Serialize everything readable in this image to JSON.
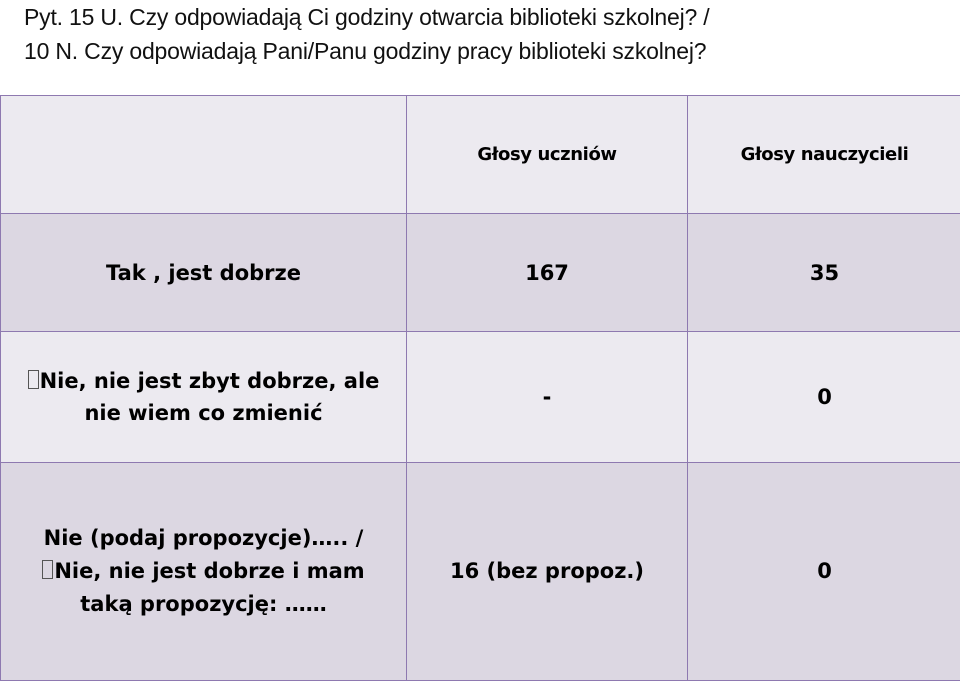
{
  "heading": {
    "line1": "Pyt. 15 U.  Czy odpowiadają Ci godziny otwarcia biblioteki szkolnej? /",
    "line2": "10 N. Czy odpowiadają Pani/Panu godziny pracy biblioteki szkolnej?"
  },
  "table": {
    "headers": [
      "",
      "Głosy uczniów",
      "Głosy nauczycieli"
    ],
    "rows": [
      {
        "label": "Tak , jest dobrze",
        "students": "167",
        "teachers": "35"
      },
      {
        "label_line1": "Nie, nie jest zbyt dobrze, ale",
        "label_line2": "nie wiem co zmienić",
        "students": "-",
        "teachers": "0"
      },
      {
        "label_line1": "Nie (podaj propozycje)….. /",
        "label_line2": "Nie, nie jest dobrze i mam",
        "label_line3": "taką propozycję: ……",
        "students": "16 (bez propoz.)",
        "teachers": "0"
      }
    ]
  }
}
